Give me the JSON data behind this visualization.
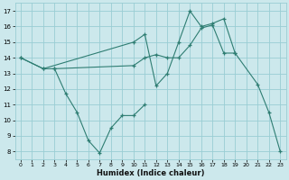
{
  "xlabel": "Humidex (Indice chaleur)",
  "bg_color": "#cce8ec",
  "grid_color": "#99cdd4",
  "line_color": "#2e7d72",
  "xlim": [
    -0.5,
    23.5
  ],
  "ylim": [
    7.5,
    17.5
  ],
  "xticks": [
    0,
    1,
    2,
    3,
    4,
    5,
    6,
    7,
    8,
    9,
    10,
    11,
    12,
    13,
    14,
    15,
    16,
    17,
    18,
    19,
    20,
    21,
    22,
    23
  ],
  "yticks": [
    8,
    9,
    10,
    11,
    12,
    13,
    14,
    15,
    16,
    17
  ],
  "series": [
    {
      "x": [
        0,
        2,
        10,
        11,
        12,
        13,
        14,
        15,
        16,
        17,
        18,
        19,
        21,
        22,
        23
      ],
      "y": [
        14,
        13.3,
        15,
        15.5,
        12.2,
        13.0,
        15.0,
        17.0,
        16.0,
        16.2,
        16.5,
        14.3,
        12.3,
        10.5,
        8.0
      ]
    },
    {
      "x": [
        0,
        2,
        3,
        10,
        11,
        12,
        13,
        14,
        15,
        16,
        17,
        18,
        19
      ],
      "y": [
        14,
        13.3,
        13.3,
        13.5,
        14.0,
        14.2,
        14.0,
        14.0,
        14.8,
        15.9,
        16.1,
        14.3,
        14.3
      ]
    },
    {
      "x": [
        3,
        4,
        5,
        6,
        7,
        8,
        9,
        10,
        11
      ],
      "y": [
        13.3,
        11.7,
        10.5,
        8.7,
        7.9,
        9.5,
        10.3,
        10.3,
        11.0
      ]
    }
  ]
}
